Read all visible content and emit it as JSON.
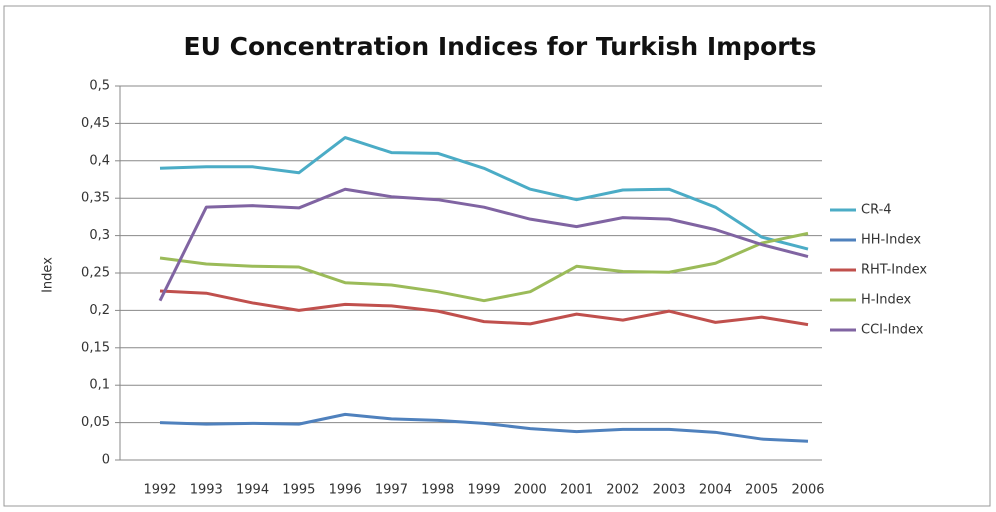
{
  "chart_data": {
    "type": "line",
    "title": "EU Concentration Indices for Turkish Imports",
    "y_label": "Index",
    "categories": [
      "1992",
      "1993",
      "1994",
      "1995",
      "1996",
      "1997",
      "1998",
      "1999",
      "2000",
      "2001",
      "2002",
      "2003",
      "2004",
      "2005",
      "2006"
    ],
    "series": [
      {
        "name": "CR-4",
        "color": "#4bacc6",
        "values": [
          0.39,
          0.392,
          0.392,
          0.384,
          0.431,
          0.411,
          0.41,
          0.39,
          0.362,
          0.348,
          0.361,
          0.362,
          0.338,
          0.298,
          0.282
        ]
      },
      {
        "name": "HH-Index",
        "color": "#4f81bd",
        "values": [
          0.05,
          0.048,
          0.049,
          0.048,
          0.061,
          0.055,
          0.053,
          0.049,
          0.042,
          0.038,
          0.041,
          0.041,
          0.037,
          0.028,
          0.025
        ]
      },
      {
        "name": "RHT-Index",
        "color": "#c0504d",
        "values": [
          0.226,
          0.223,
          0.21,
          0.2,
          0.208,
          0.206,
          0.199,
          0.185,
          0.182,
          0.195,
          0.187,
          0.199,
          0.184,
          0.191,
          0.181
        ]
      },
      {
        "name": "H-Index",
        "color": "#9bbb59",
        "values": [
          0.27,
          0.262,
          0.259,
          0.258,
          0.237,
          0.234,
          0.225,
          0.213,
          0.225,
          0.259,
          0.252,
          0.251,
          0.263,
          0.29,
          0.303
        ]
      },
      {
        "name": "CCI-Index",
        "color": "#8064a2",
        "values": [
          0.213,
          0.338,
          0.34,
          0.337,
          0.362,
          0.352,
          0.348,
          0.338,
          0.322,
          0.312,
          0.324,
          0.322,
          0.308,
          0.288,
          0.272
        ]
      }
    ],
    "ylim": [
      0,
      0.5
    ],
    "yticks": [
      0,
      {
        "value": 0.05,
        "label": "0,05"
      },
      {
        "value": 0.1,
        "label": "0,1"
      },
      {
        "value": 0.15,
        "label": "0,15"
      },
      {
        "value": 0.2,
        "label": "0,2"
      },
      {
        "value": 0.25,
        "label": "0,25"
      },
      {
        "value": 0.3,
        "label": "0,3"
      },
      {
        "value": 0.35,
        "label": "0,35"
      },
      {
        "value": 0.4,
        "label": "0,4"
      },
      {
        "value": 0.45,
        "label": "0,45"
      },
      {
        "value": 0.5,
        "label": "0,5"
      }
    ],
    "grid": true,
    "legend": "right"
  }
}
